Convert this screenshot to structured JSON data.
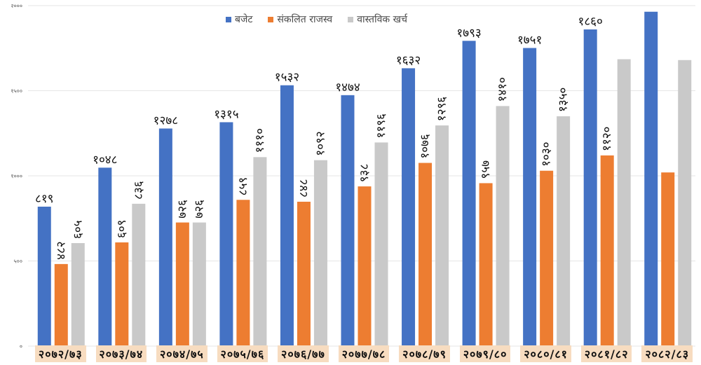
{
  "chart_data": {
    "type": "bar",
    "title": "",
    "xlabel": "",
    "ylabel": "",
    "ylim": [
      0,
      2000
    ],
    "yticks": [
      "०",
      "५००",
      "१०००",
      "१५००",
      "२०००"
    ],
    "ytick_values": [
      0,
      500,
      1000,
      1500,
      2000
    ],
    "grid": true,
    "legend_position": "top-center",
    "categories": [
      "२०७२/७३",
      "२०७३/७४",
      "२०७४/७५",
      "२०७५/७६",
      "२०७६/७७",
      "२०७७/७८",
      "२०७८/७९",
      "२०७९/८०",
      "२०८०/८१",
      "२०८१/८२",
      "२०८२/८३"
    ],
    "series": [
      {
        "name": "बजेट",
        "color": "#4472c4",
        "values": [
          819,
          1048,
          1278,
          1315,
          1532,
          1474,
          1632,
          1793,
          1751,
          1860,
          1964
        ],
        "labels": [
          "८१९",
          "१०४८",
          "१२७८",
          "१३१५",
          "१५३२",
          "१४७४",
          "१६३२",
          "१७९३",
          "१७५१",
          "१८६०",
          ""
        ]
      },
      {
        "name": "संकलित राजस्व",
        "color": "#ed7d31",
        "values": [
          482,
          609,
          726,
          859,
          848,
          938,
          1076,
          957,
          1030,
          1120,
          1020
        ],
        "labels": [
          "४८२",
          "६०९",
          "७२६",
          "८५९",
          "८४८",
          "९३८",
          "१०७६",
          "९५७",
          "१०३०",
          "११२०",
          ""
        ]
      },
      {
        "name": "वास्तविक खर्च",
        "color": "#c9c9c9",
        "values": [
          605,
          836,
          726,
          1110,
          1092,
          1196,
          1296,
          1410,
          1350,
          1685,
          1680
        ],
        "labels": [
          "६०५",
          "८३६",
          "७२६",
          "१११०",
          "१०९२",
          "११९६",
          "१२९६",
          "१४१०",
          "१३५०",
          "",
          ""
        ]
      }
    ]
  }
}
